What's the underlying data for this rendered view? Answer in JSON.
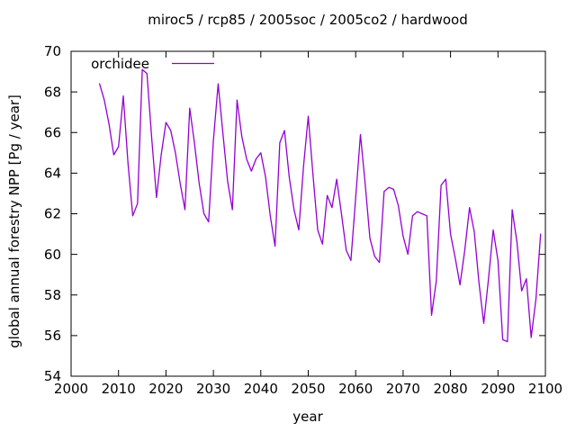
{
  "chart_data": {
    "type": "line",
    "title": "miroc5 / rcp85 / 2005soc / 2005co2 / hardwood",
    "xlabel": "year",
    "ylabel": "global annual forestry NPP [Pg / year]",
    "xlim": [
      2000,
      2100
    ],
    "ylim": [
      54,
      70
    ],
    "xticks": [
      2000,
      2010,
      2020,
      2030,
      2040,
      2050,
      2060,
      2070,
      2080,
      2090,
      2100
    ],
    "yticks": [
      54,
      56,
      58,
      60,
      62,
      64,
      66,
      68,
      70
    ],
    "grid": false,
    "legend_position": "top-left-inside",
    "background_color": "#ffffff",
    "axis_color": "#000000",
    "series": [
      {
        "name": "orchidee",
        "color": "#9400d3",
        "x": [
          2006,
          2007,
          2008,
          2009,
          2010,
          2011,
          2012,
          2013,
          2014,
          2015,
          2016,
          2017,
          2018,
          2019,
          2020,
          2021,
          2022,
          2023,
          2024,
          2025,
          2026,
          2027,
          2028,
          2029,
          2030,
          2031,
          2032,
          2033,
          2034,
          2035,
          2036,
          2037,
          2038,
          2039,
          2040,
          2041,
          2042,
          2043,
          2044,
          2045,
          2046,
          2047,
          2048,
          2049,
          2050,
          2051,
          2052,
          2053,
          2054,
          2055,
          2056,
          2057,
          2058,
          2059,
          2060,
          2061,
          2062,
          2063,
          2064,
          2065,
          2066,
          2067,
          2068,
          2069,
          2070,
          2071,
          2072,
          2073,
          2074,
          2075,
          2076,
          2077,
          2078,
          2079,
          2080,
          2081,
          2082,
          2083,
          2084,
          2085,
          2086,
          2087,
          2088,
          2089,
          2090,
          2091,
          2092,
          2093,
          2094,
          2095,
          2096,
          2097,
          2098,
          2099
        ],
        "y": [
          68.4,
          67.6,
          66.4,
          64.9,
          65.3,
          67.8,
          64.5,
          61.9,
          62.5,
          69.1,
          68.9,
          65.7,
          62.8,
          64.9,
          66.5,
          66.1,
          65.0,
          63.5,
          62.2,
          67.2,
          65.5,
          63.5,
          62.0,
          61.6,
          65.6,
          68.4,
          66.0,
          63.6,
          62.2,
          67.6,
          65.8,
          64.7,
          64.1,
          64.7,
          65.0,
          63.8,
          61.9,
          60.4,
          65.5,
          66.1,
          63.8,
          62.2,
          61.2,
          64.3,
          66.8,
          63.9,
          61.2,
          60.5,
          62.9,
          62.3,
          63.7,
          62.0,
          60.2,
          59.7,
          62.8,
          65.9,
          63.5,
          60.8,
          59.9,
          59.6,
          63.1,
          63.3,
          63.2,
          62.4,
          60.9,
          60.0,
          61.9,
          62.1,
          62.0,
          61.9,
          57.0,
          58.7,
          63.4,
          63.7,
          61.0,
          59.8,
          58.5,
          60.2,
          62.3,
          61.1,
          58.6,
          56.6,
          58.8,
          61.2,
          59.7,
          55.8,
          55.7,
          62.2,
          60.6,
          58.2,
          58.8,
          55.9,
          57.8,
          61.0
        ]
      }
    ]
  }
}
